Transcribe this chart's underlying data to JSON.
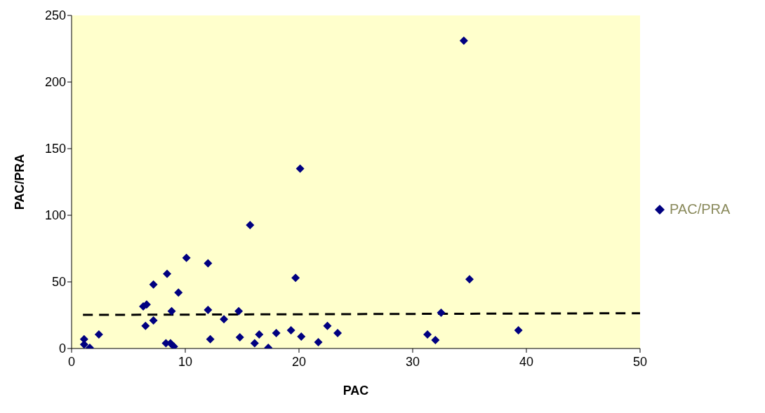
{
  "chart_data": {
    "type": "scatter",
    "xlabel": "PAC",
    "ylabel": "PAC/PRA",
    "xlim": [
      0,
      50
    ],
    "xticks": [
      0,
      10,
      20,
      30,
      40,
      50
    ],
    "ylim": [
      0,
      250
    ],
    "yticks": [
      0,
      50,
      100,
      150,
      200,
      250
    ],
    "grid": false,
    "legend": "right",
    "marker": "diamond",
    "series": [
      {
        "name": "PAC/PRA",
        "color": "#000080",
        "x": [
          1.1,
          1.1,
          1.6,
          2.4,
          6.3,
          6.6,
          6.5,
          7.2,
          7.2,
          8.4,
          8.3,
          8.7,
          9.0,
          8.8,
          9.4,
          10.1,
          12.0,
          12.0,
          12.2,
          13.4,
          14.7,
          14.8,
          15.7,
          16.1,
          16.5,
          17.3,
          18.0,
          19.3,
          19.7,
          20.1,
          20.2,
          21.7,
          22.5,
          23.4,
          31.3,
          32.0,
          32.5,
          34.5,
          35.0,
          39.3
        ],
        "values": [
          7,
          3,
          0.5,
          10.5,
          31.6,
          33,
          17,
          21,
          48,
          56,
          4,
          4,
          1.5,
          28,
          42,
          68,
          64,
          29,
          7,
          22,
          28,
          8.4,
          92.6,
          4,
          10.5,
          0.5,
          11.6,
          13.7,
          53,
          135,
          9,
          4.7,
          17,
          11.6,
          10.5,
          6.3,
          26.8,
          231,
          52,
          13.7
        ]
      },
      {
        "type": "line",
        "color": "#000000",
        "line_style": "dashed",
        "marker": "none",
        "x": [
          1,
          50
        ],
        "values": [
          25.2,
          26.5
        ]
      }
    ]
  }
}
